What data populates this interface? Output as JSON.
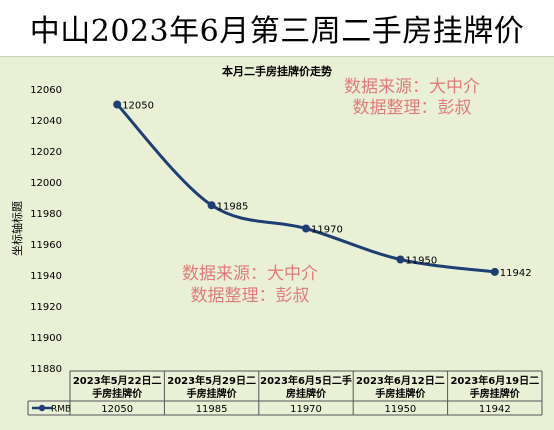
{
  "page_title": "中山2023年6月第三周二手房挂牌价",
  "watermarks": [
    {
      "line1": "数据来源：大中介",
      "line2": "数据整理：彭叔"
    },
    {
      "line1": "数据来源：大中介",
      "line2": "数据整理：彭叔"
    }
  ],
  "colors": {
    "line": "#1f3f73",
    "background": "#e9f0d6",
    "watermark": "#e07c7c"
  },
  "chart_data": {
    "type": "line",
    "title": "本月二手房挂牌价走势",
    "ylabel": "坐标轴标题",
    "xlabel": "",
    "ylim": [
      11880,
      12060
    ],
    "yticks": [
      11880,
      11900,
      11920,
      11940,
      11960,
      11980,
      12000,
      12020,
      12040,
      12060
    ],
    "categories": [
      "2023年5月22日二手房挂牌价",
      "2023年5月29日二手房挂牌价",
      "2023年6月5日二手房挂牌价",
      "2023年6月12日二手房挂牌价",
      "2023年6月19日二手房挂牌价"
    ],
    "category_lines": [
      [
        "2023年5月22日二",
        "手房挂牌价"
      ],
      [
        "2023年5月29日二",
        "手房挂牌价"
      ],
      [
        "2023年6月5日二手",
        "房挂牌价"
      ],
      [
        "2023年6月12日二",
        "手房挂牌价"
      ],
      [
        "2023年6月19日二",
        "手房挂牌价"
      ]
    ],
    "series": [
      {
        "name": "RMB",
        "values": [
          12050,
          11985,
          11970,
          11950,
          11942
        ]
      }
    ],
    "value_labels": [
      "12050",
      "11985",
      "11970",
      "11950",
      "11942"
    ],
    "data_table": true,
    "grid": false
  }
}
